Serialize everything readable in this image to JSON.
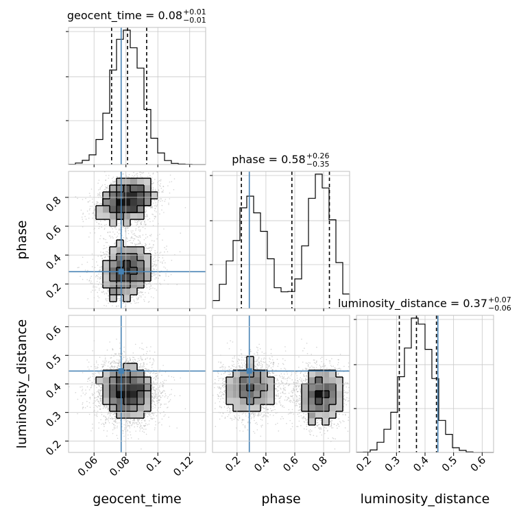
{
  "chart_data": {
    "type": "corner",
    "parameters": [
      "geocent_time",
      "phase",
      "luminosity_distance"
    ],
    "truths": {
      "geocent_time": 0.077,
      "phase": 0.285,
      "luminosity_distance": 0.445
    },
    "ranges": {
      "geocent_time": [
        0.044,
        0.13
      ],
      "phase": [
        0.03,
        0.98
      ],
      "luminosity_distance": [
        0.16,
        0.64
      ]
    },
    "ticks": {
      "geocent_time": [
        0.06,
        0.08,
        0.1,
        0.12
      ],
      "phase": [
        0.2,
        0.4,
        0.6,
        0.8
      ],
      "luminosity_distance": [
        0.2,
        0.3,
        0.4,
        0.5,
        0.6
      ]
    },
    "titles": [
      {
        "param": "geocent_time",
        "text": "geocent_time = 0.08",
        "sup": "+0.01",
        "sub": "−0.01"
      },
      {
        "param": "phase",
        "text": "phase = 0.58",
        "sup": "+0.26",
        "sub": "−0.35"
      },
      {
        "param": "luminosity_distance",
        "text": "luminosity_distance = 0.37",
        "sup": "+0.07",
        "sub": "−0.06"
      }
    ],
    "quantiles": {
      "geocent_time": [
        0.071,
        0.081,
        0.093
      ],
      "phase": [
        0.23,
        0.58,
        0.84
      ],
      "luminosity_distance": [
        0.31,
        0.37,
        0.44
      ]
    },
    "grid": true,
    "colors": {
      "truth": "#4682b4",
      "hist": "#000000",
      "points": "#b0b0b0",
      "grid": "#c8c8c8",
      "frame": "#bfbfbf"
    }
  }
}
